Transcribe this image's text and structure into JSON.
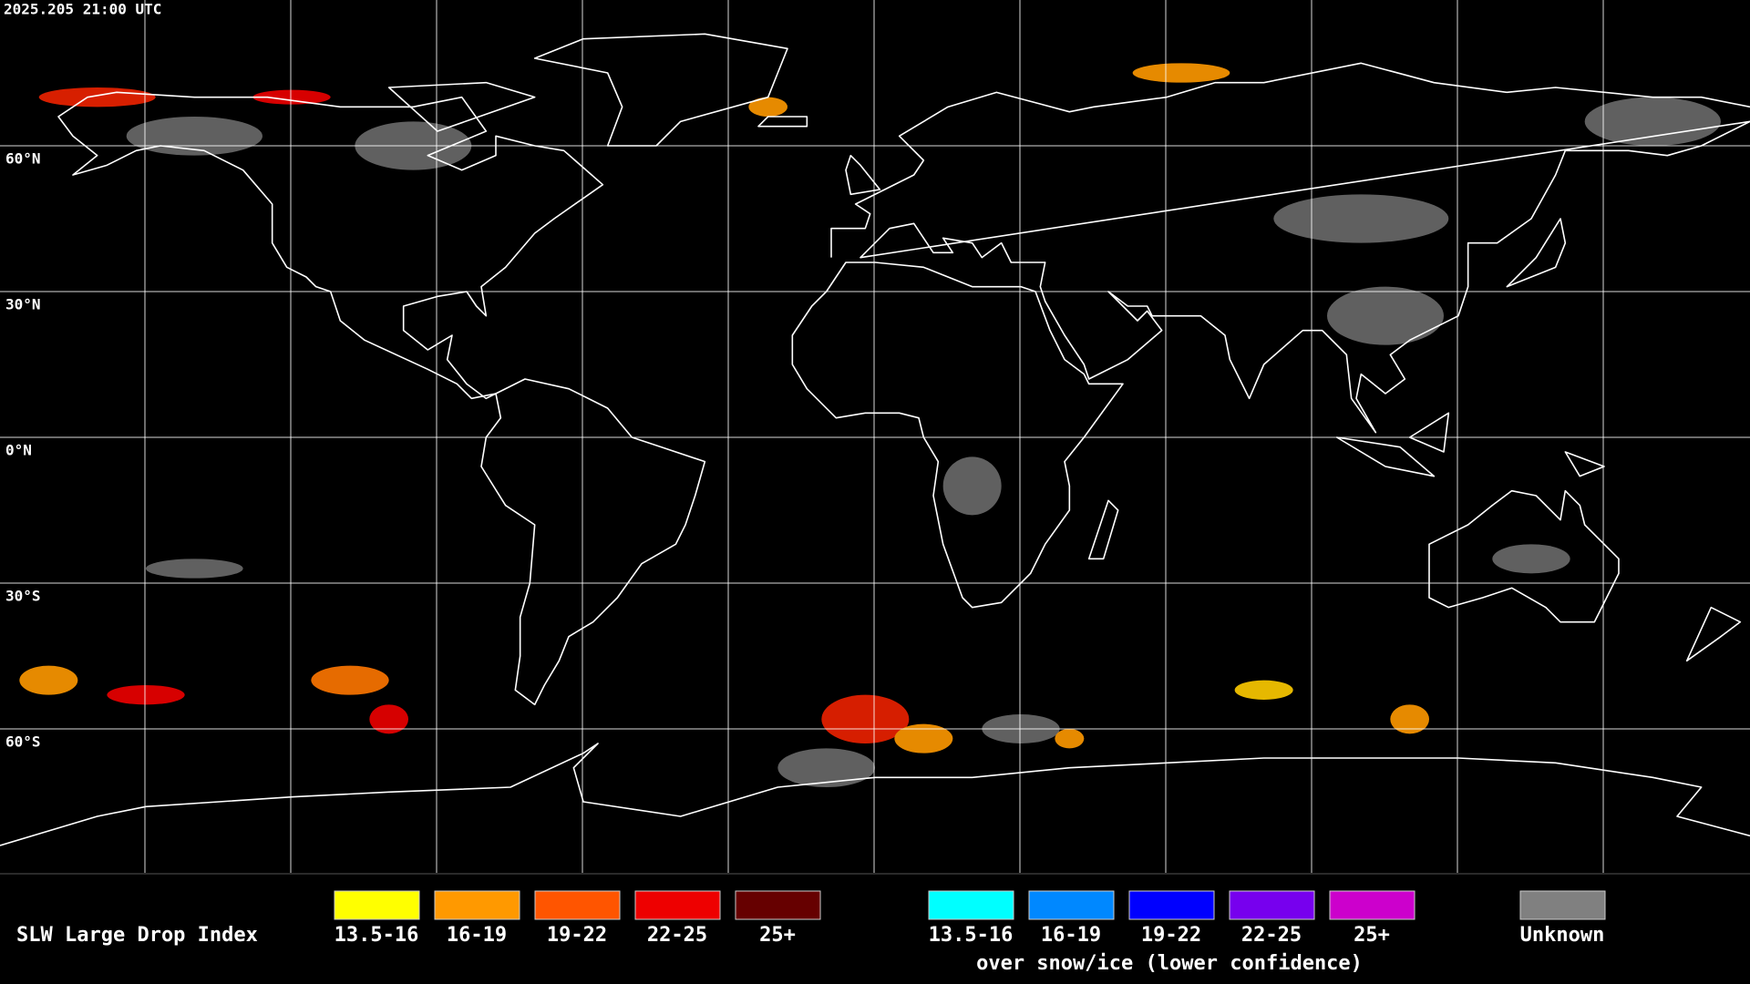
{
  "header": {
    "timestamp": "2025.205 21:00 UTC"
  },
  "grid": {
    "lat_labels": [
      "60°N",
      "30°N",
      "0°N",
      "30°S",
      "60°S"
    ]
  },
  "legend": {
    "title": "SLW Large Drop Index",
    "liquid": [
      {
        "label": "13.5-16",
        "color": "#ffff00"
      },
      {
        "label": "16-19",
        "color": "#ff9900"
      },
      {
        "label": "19-22",
        "color": "#ff5500"
      },
      {
        "label": "22-25",
        "color": "#ee0000"
      },
      {
        "label": "25+",
        "color": "#660000"
      }
    ],
    "snow_ice": [
      {
        "label": "13.5-16",
        "color": "#00ffff"
      },
      {
        "label": "16-19",
        "color": "#0088ff"
      },
      {
        "label": "19-22",
        "color": "#0000ff"
      },
      {
        "label": "22-25",
        "color": "#7700ee"
      },
      {
        "label": "25+",
        "color": "#cc00cc"
      }
    ],
    "snow_ice_caption": "over snow/ice (lower confidence)",
    "unknown": {
      "label": "Unknown",
      "color": "#808080"
    }
  }
}
